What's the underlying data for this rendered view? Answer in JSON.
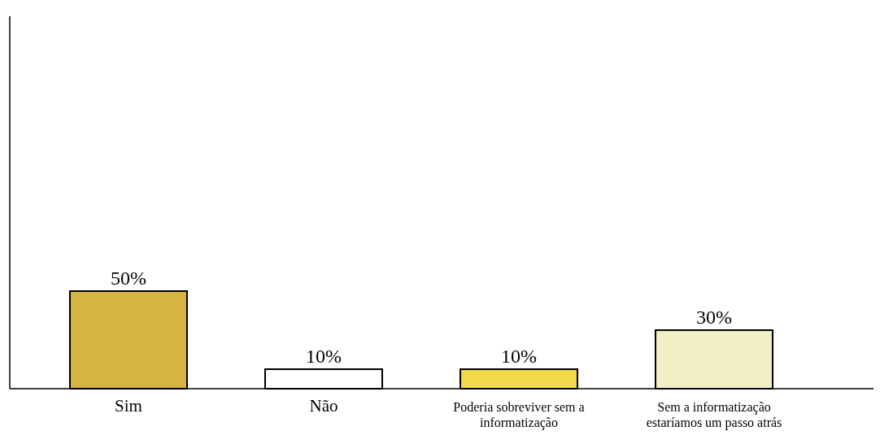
{
  "chart_data": {
    "type": "bar",
    "categories": [
      "Sim",
      "Não",
      "Poderia sobreviver sem a informatização",
      "Sem a informatização estaríamos um passo atrás"
    ],
    "values": [
      50,
      10,
      10,
      30
    ],
    "colors": [
      "#d6b441",
      "#ffffff",
      "#f2d949",
      "#f4eec4"
    ],
    "value_labels": [
      "50%",
      "10%",
      "10%",
      "30%"
    ]
  }
}
